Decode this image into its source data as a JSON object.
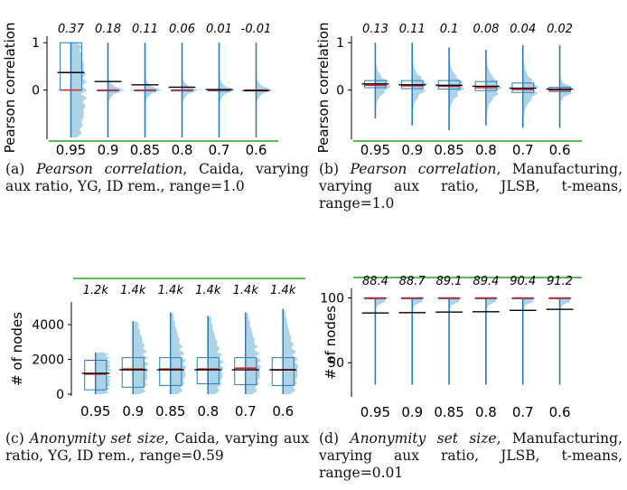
{
  "colors": {
    "box": "#2b7bba",
    "violin": "#92c5de",
    "median": "#d62728",
    "mean": "#000000",
    "topline": "#2ca02c"
  },
  "panels": {
    "a": {
      "caption_prefix": "(a) ",
      "caption_em": "Pearson correlation",
      "caption_rest": ", Caida, varying aux ratio, YG, ID rem., range=1.0"
    },
    "b": {
      "caption_prefix": "(b) ",
      "caption_em": "Pearson correlation",
      "caption_rest": ", Manufacturing, varying aux ratio, JLSB, t-means, range=1.0"
    },
    "c": {
      "caption_prefix": "(c) ",
      "caption_em": "Anonymity set size",
      "caption_rest": ", Caida, varying aux ratio, YG, ID rem., range=0.59"
    },
    "d": {
      "caption_prefix": "(d) ",
      "caption_em": "Anonymity set size",
      "caption_rest": ", Manufacturing, varying aux ratio, JLSB, t-means, range=0.01"
    }
  },
  "chart_data": [
    {
      "type": "box",
      "id": "a",
      "xlabel": "",
      "ylabel": "Pearson correlation",
      "categories": [
        "0.95",
        "0.9",
        "0.85",
        "0.8",
        "0.7",
        "0.6"
      ],
      "mean_labels": [
        "0.37",
        "0.18",
        "0.11",
        "0.06",
        "0.01",
        "-0.01"
      ],
      "ylim": [
        -1.0,
        1.1
      ],
      "yticks": [
        0,
        1
      ],
      "ytick_labels": [
        "0",
        "1"
      ],
      "mean": [
        0.37,
        0.18,
        0.11,
        0.06,
        0.01,
        -0.01
      ],
      "median": [
        0.0,
        0.0,
        0.0,
        0.0,
        0.0,
        0.0
      ],
      "q1": [
        0.0,
        0.0,
        0.0,
        0.0,
        0.0,
        -0.01
      ],
      "q3": [
        1.0,
        0.0,
        0.0,
        0.0,
        0.0,
        0.0
      ],
      "whisker_low": [
        -1.0,
        -1.0,
        -1.0,
        -1.0,
        -1.0,
        -1.0
      ],
      "whisker_high": [
        1.0,
        1.0,
        1.0,
        1.0,
        1.0,
        1.0
      ],
      "topline": false,
      "bottomline": true
    },
    {
      "type": "box",
      "id": "b",
      "xlabel": "",
      "ylabel": "Pearson correlation",
      "categories": [
        "0.95",
        "0.9",
        "0.85",
        "0.8",
        "0.7",
        "0.6"
      ],
      "mean_labels": [
        "0.13",
        "0.11",
        "0.1",
        "0.08",
        "0.04",
        "0.02"
      ],
      "ylim": [
        -1.0,
        1.1
      ],
      "yticks": [
        0,
        1
      ],
      "ytick_labels": [
        "0",
        "1"
      ],
      "mean": [
        0.13,
        0.11,
        0.1,
        0.08,
        0.04,
        0.02
      ],
      "median": [
        0.1,
        0.09,
        0.08,
        0.05,
        0.01,
        0.0
      ],
      "q1": [
        0.05,
        0.03,
        0.02,
        -0.01,
        -0.05,
        -0.03
      ],
      "q3": [
        0.2,
        0.2,
        0.2,
        0.18,
        0.15,
        0.06
      ],
      "whisker_low": [
        -0.6,
        -0.75,
        -0.85,
        -0.75,
        -0.8,
        -0.8
      ],
      "whisker_high": [
        1.0,
        1.0,
        0.9,
        0.85,
        0.95,
        0.95
      ],
      "topline": false,
      "bottomline": true
    },
    {
      "type": "box",
      "id": "c",
      "xlabel": "",
      "ylabel": "# of nodes",
      "categories": [
        "0.95",
        "0.9",
        "0.85",
        "0.8",
        "0.7",
        "0.6"
      ],
      "mean_labels": [
        "1.2k",
        "1.4k",
        "1.4k",
        "1.4k",
        "1.4k",
        "1.4k"
      ],
      "ylim": [
        0,
        5200
      ],
      "yticks": [
        0,
        2000,
        4000
      ],
      "ytick_labels": [
        "0",
        "2000",
        "4000"
      ],
      "mean": [
        1200,
        1400,
        1400,
        1400,
        1400,
        1400
      ],
      "median": [
        1150,
        1450,
        1450,
        1450,
        1500,
        1400
      ],
      "q1": [
        250,
        400,
        500,
        600,
        550,
        500
      ],
      "q3": [
        1950,
        2100,
        2100,
        2100,
        2100,
        2100
      ],
      "whisker_low": [
        0,
        0,
        0,
        0,
        0,
        0
      ],
      "whisker_high": [
        2400,
        4200,
        4700,
        4500,
        4700,
        4900
      ],
      "topline": true,
      "bottomline": false
    },
    {
      "type": "box",
      "id": "d",
      "xlabel": "",
      "ylabel": "# of nodes",
      "categories": [
        "0.95",
        "0.9",
        "0.85",
        "0.8",
        "0.7",
        "0.6"
      ],
      "mean_labels": [
        "88.4",
        "88.7",
        "89.1",
        "89.4",
        "90.4",
        "91.2"
      ],
      "ylim": [
        25,
        106
      ],
      "yticks": [
        50,
        100
      ],
      "ytick_labels": [
        "50",
        "100"
      ],
      "mean": [
        88.4,
        88.7,
        89.1,
        89.4,
        90.4,
        91.2
      ],
      "median": [
        100,
        100,
        100,
        100,
        100,
        100
      ],
      "q1": [
        100,
        100,
        100,
        100,
        100,
        100
      ],
      "q3": [
        100,
        100,
        100,
        100,
        100,
        100
      ],
      "whisker_low": [
        33,
        33,
        33,
        33,
        33,
        33
      ],
      "whisker_high": [
        100,
        100,
        100,
        100,
        100,
        100
      ],
      "topline": true,
      "bottomline": false
    }
  ]
}
